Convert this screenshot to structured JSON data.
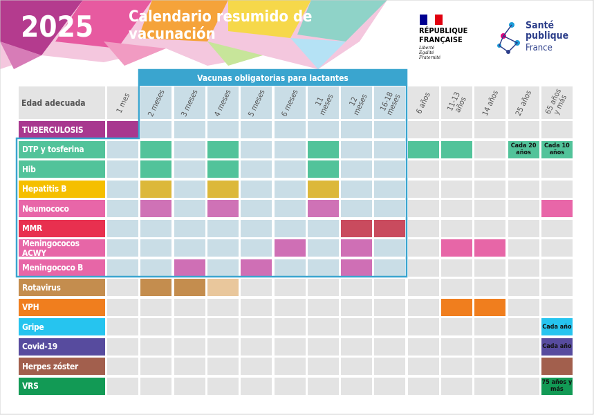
{
  "header": {
    "year": "2025",
    "title": "Calendario resumido de vacunación",
    "republique": "RÉPUBLIQUE FRANÇAISE",
    "motto": "Liberté Égalité Fraternité",
    "sante": "Santé publique",
    "france": "France"
  },
  "table": {
    "mandatory_label": "Vacunas obligatorias para lactantes",
    "corner": "Edad adecuada",
    "ages": [
      "1 mes",
      "2 meses",
      "3 meses",
      "4 meses",
      "5 meses",
      "6 meses",
      "11 meses",
      "12 meses",
      "16-18 meses",
      "6 años",
      "11-13 años",
      "14 años",
      "25 años",
      "65 años y más"
    ],
    "rows": [
      {
        "label": "TUBERCULOSIS",
        "color": "#a8388f",
        "cells": [
          {
            "color": "#a8388f"
          },
          null,
          null,
          null,
          null,
          null,
          null,
          null,
          null,
          null,
          null,
          null,
          null,
          null
        ]
      },
      {
        "label": "DTP y tosferina",
        "color": "#52c39a",
        "cells": [
          null,
          {
            "color": "#52c39a"
          },
          null,
          {
            "color": "#52c39a"
          },
          null,
          null,
          {
            "color": "#52c39a"
          },
          null,
          null,
          {
            "color": "#52c39a"
          },
          {
            "color": "#52c39a"
          },
          null,
          {
            "color": "#52c39a",
            "text": "Cada 20 años"
          },
          {
            "color": "#52c39a",
            "text": "Cada 10 años"
          }
        ]
      },
      {
        "label": "Hib",
        "color": "#52c39a",
        "cells": [
          null,
          {
            "color": "#52c39a"
          },
          null,
          {
            "color": "#52c39a"
          },
          null,
          null,
          {
            "color": "#52c39a"
          },
          null,
          null,
          null,
          null,
          null,
          null,
          null
        ]
      },
      {
        "label": "Hepatitis B",
        "color": "#f5bf00",
        "cells": [
          null,
          {
            "color": "#dcb83a"
          },
          null,
          {
            "color": "#dcb83a"
          },
          null,
          null,
          {
            "color": "#dcb83a"
          },
          null,
          null,
          null,
          null,
          null,
          null,
          null
        ]
      },
      {
        "label": "Neumococo",
        "color": "#e866a8",
        "cells": [
          null,
          {
            "color": "#cf72b6"
          },
          null,
          {
            "color": "#cf72b6"
          },
          null,
          null,
          {
            "color": "#cf72b6"
          },
          null,
          null,
          null,
          null,
          null,
          null,
          {
            "color": "#e866a8"
          }
        ]
      },
      {
        "label": "MMR",
        "color": "#e8304f",
        "cells": [
          null,
          null,
          null,
          null,
          null,
          null,
          null,
          {
            "color": "#c94b5e"
          },
          {
            "color": "#c94b5e"
          },
          null,
          null,
          null,
          null,
          null
        ]
      },
      {
        "label": "Meningococos ACWY",
        "color": "#e766a7",
        "cells": [
          null,
          null,
          null,
          null,
          null,
          {
            "color": "#cf6fb5"
          },
          null,
          {
            "color": "#cf6fb5"
          },
          null,
          null,
          {
            "color": "#e766a7"
          },
          {
            "color": "#e766a7"
          },
          null,
          null
        ]
      },
      {
        "label": "Meningococo B",
        "color": "#e766a7",
        "cells": [
          null,
          null,
          {
            "color": "#cf6fb5"
          },
          null,
          {
            "color": "#cf6fb5"
          },
          null,
          null,
          {
            "color": "#cf6fb5"
          },
          null,
          null,
          null,
          null,
          null,
          null
        ]
      },
      {
        "label": "Rotavirus",
        "color": "#c48d4e",
        "cells": [
          null,
          {
            "color": "#c48d4e"
          },
          {
            "color": "#c48d4e"
          },
          {
            "color": "#e9c79c"
          },
          null,
          null,
          null,
          null,
          null,
          null,
          null,
          null,
          null,
          null
        ]
      },
      {
        "label": "VPH",
        "color": "#f07e1e",
        "cells": [
          null,
          null,
          null,
          null,
          null,
          null,
          null,
          null,
          null,
          null,
          {
            "color": "#f07e1e"
          },
          {
            "color": "#f07e1e"
          },
          null,
          null
        ]
      },
      {
        "label": "Gripe",
        "color": "#26c4ef",
        "cells": [
          null,
          null,
          null,
          null,
          null,
          null,
          null,
          null,
          null,
          null,
          null,
          null,
          null,
          {
            "color": "#26c4ef",
            "text": "Cada año"
          }
        ]
      },
      {
        "label": "Covid-19",
        "color": "#574b9e",
        "cells": [
          null,
          null,
          null,
          null,
          null,
          null,
          null,
          null,
          null,
          null,
          null,
          null,
          null,
          {
            "color": "#574b9e",
            "text": "Cada año"
          }
        ]
      },
      {
        "label": "Herpes zóster",
        "color": "#a25f4d",
        "cells": [
          null,
          null,
          null,
          null,
          null,
          null,
          null,
          null,
          null,
          null,
          null,
          null,
          null,
          {
            "color": "#a25f4d"
          }
        ]
      },
      {
        "label": "VRS",
        "color": "#129a55",
        "cells": [
          null,
          null,
          null,
          null,
          null,
          null,
          null,
          null,
          null,
          null,
          null,
          null,
          null,
          {
            "color": "#129a55",
            "text": "75 años y más"
          }
        ]
      }
    ]
  }
}
